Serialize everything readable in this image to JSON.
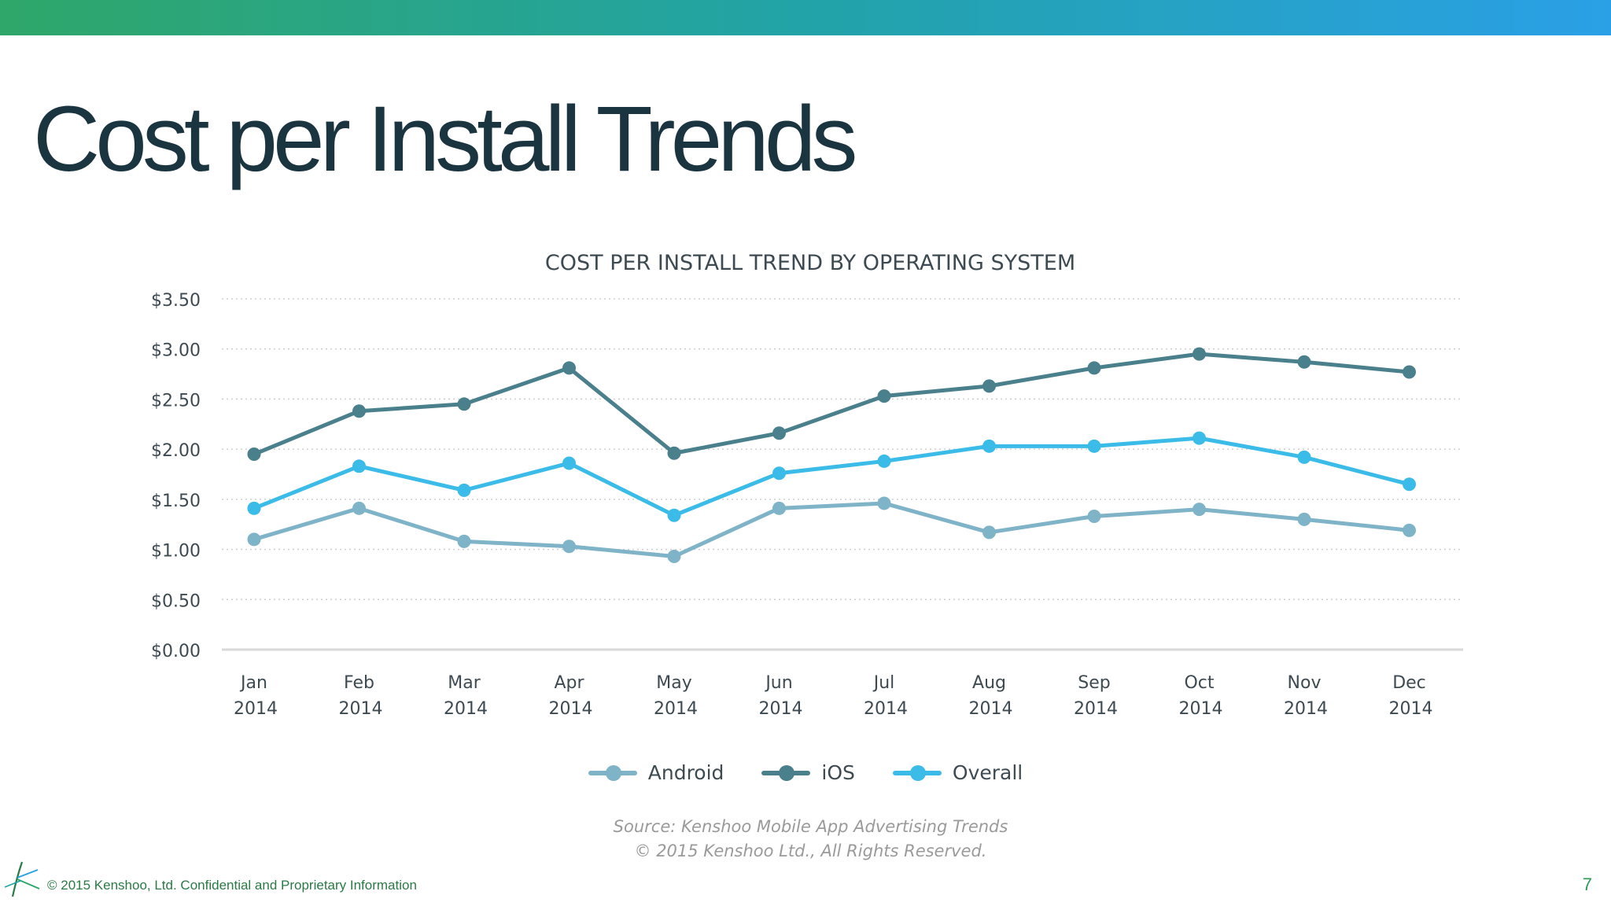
{
  "slide": {
    "title": "Cost per Install Trends",
    "footer": "©  2015 Kenshoo, Ltd. Confidential and Proprietary Information",
    "page_number": "7"
  },
  "source": {
    "line1": "Source: Kenshoo Mobile App Advertising Trends",
    "line2": "© 2015 Kenshoo Ltd., All Rights Reserved."
  },
  "chart_data": {
    "type": "line",
    "title": "COST PER INSTALL TREND BY OPERATING SYSTEM",
    "xlabel": "",
    "ylabel": "",
    "categories": [
      [
        "Jan",
        "2014"
      ],
      [
        "Feb",
        "2014"
      ],
      [
        "Mar",
        "2014"
      ],
      [
        "Apr",
        "2014"
      ],
      [
        "May",
        "2014"
      ],
      [
        "Jun",
        "2014"
      ],
      [
        "Jul",
        "2014"
      ],
      [
        "Aug",
        "2014"
      ],
      [
        "Sep",
        "2014"
      ],
      [
        "Oct",
        "2014"
      ],
      [
        "Nov",
        "2014"
      ],
      [
        "Dec",
        "2014"
      ]
    ],
    "yticks": [
      "$0.00",
      "$0.50",
      "$1.00",
      "$1.50",
      "$2.00",
      "$2.50",
      "$3.00",
      "$3.50"
    ],
    "ylim": [
      0,
      3.5
    ],
    "grid": true,
    "legend_position": "bottom",
    "series": [
      {
        "name": "Android",
        "color": "#7fb3c7",
        "values": [
          1.1,
          1.41,
          1.08,
          1.03,
          0.93,
          1.41,
          1.46,
          1.17,
          1.33,
          1.4,
          1.3,
          1.19
        ]
      },
      {
        "name": "iOS",
        "color": "#4a7f8c",
        "values": [
          1.95,
          2.38,
          2.45,
          2.81,
          1.96,
          2.16,
          2.53,
          2.63,
          2.81,
          2.95,
          2.87,
          2.77
        ]
      },
      {
        "name": "Overall",
        "color": "#3bbbe8",
        "values": [
          1.41,
          1.83,
          1.59,
          1.86,
          1.34,
          1.76,
          1.88,
          2.03,
          2.03,
          2.11,
          1.92,
          1.65
        ]
      }
    ]
  }
}
